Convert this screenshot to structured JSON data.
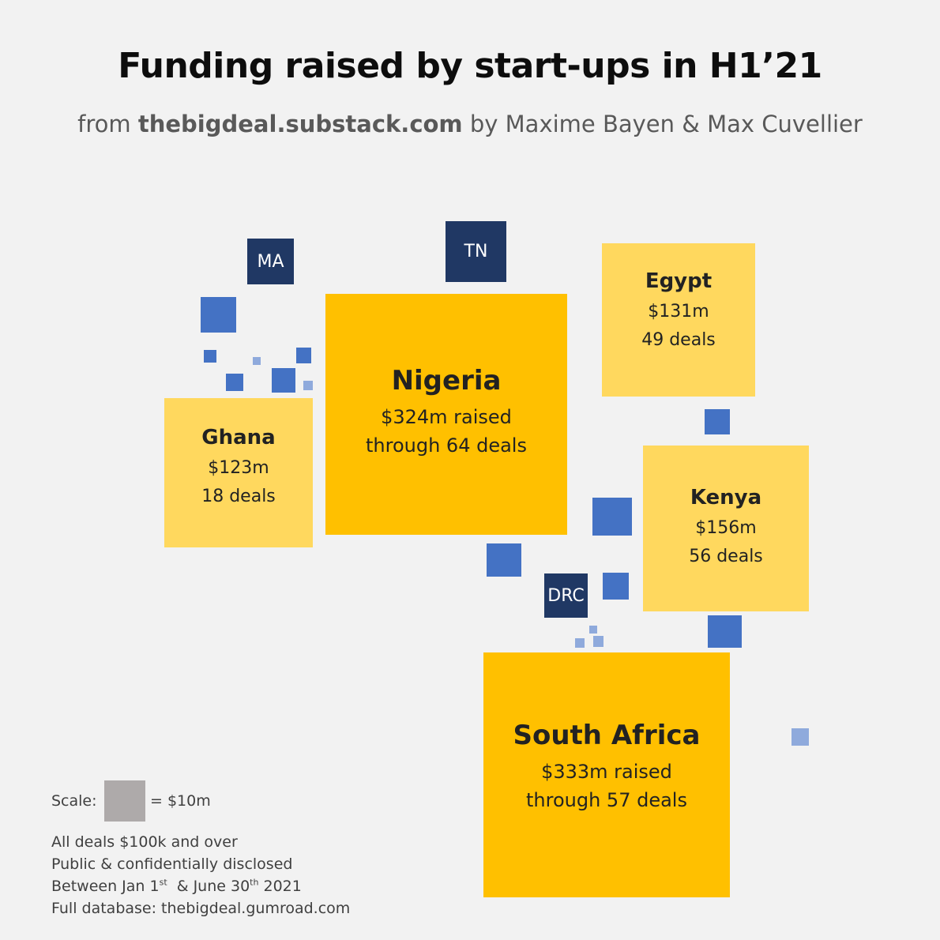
{
  "title": "Funding raised by start-ups in H1’21",
  "subtitle": {
    "prefix": "from ",
    "source": "thebigdeal.substack.com",
    "suffix": " by Maxime Bayen & Max Cuvellier"
  },
  "colors": {
    "background": "#f2f2f2",
    "top_country": "#ffc000",
    "major_country": "#ffd85e",
    "code_box": "#203864",
    "medium_square": "#4472c4",
    "small_square": "#8faadc",
    "scale_square": "#aeaaaa"
  },
  "chart_data": {
    "type": "treemap-squares",
    "title": "Funding raised by start-ups in H1’21",
    "countries": [
      {
        "name": "Nigeria",
        "amount_usd_m": 324,
        "deals": 64,
        "line1": "$324m raised",
        "line2": "through 64 deals"
      },
      {
        "name": "South Africa",
        "amount_usd_m": 333,
        "deals": 57,
        "line1": "$333m raised",
        "line2": "through 57 deals"
      },
      {
        "name": "Egypt",
        "amount_usd_m": 131,
        "deals": 49,
        "line1": "$131m",
        "line2": "49 deals"
      },
      {
        "name": "Kenya",
        "amount_usd_m": 156,
        "deals": 56,
        "line1": "$156m",
        "line2": "56 deals"
      },
      {
        "name": "Ghana",
        "amount_usd_m": 123,
        "deals": 18,
        "line1": "$123m",
        "line2": "18 deals"
      }
    ],
    "labeled_small_countries": [
      "MA",
      "TN",
      "DRC"
    ],
    "scale_unit_usd_m": 10
  },
  "scale": {
    "label": "Scale:",
    "eq": "= $10m"
  },
  "notes": {
    "line1": "All deals $100k and over",
    "line2": "Public & confidentially disclosed",
    "line3_a": "Between Jan 1",
    "line3_sup1": "st",
    "line3_b": "  & June 30",
    "line3_sup2": "th",
    "line3_c": " 2021",
    "line4": "Full database: thebigdeal.gumroad.com"
  }
}
